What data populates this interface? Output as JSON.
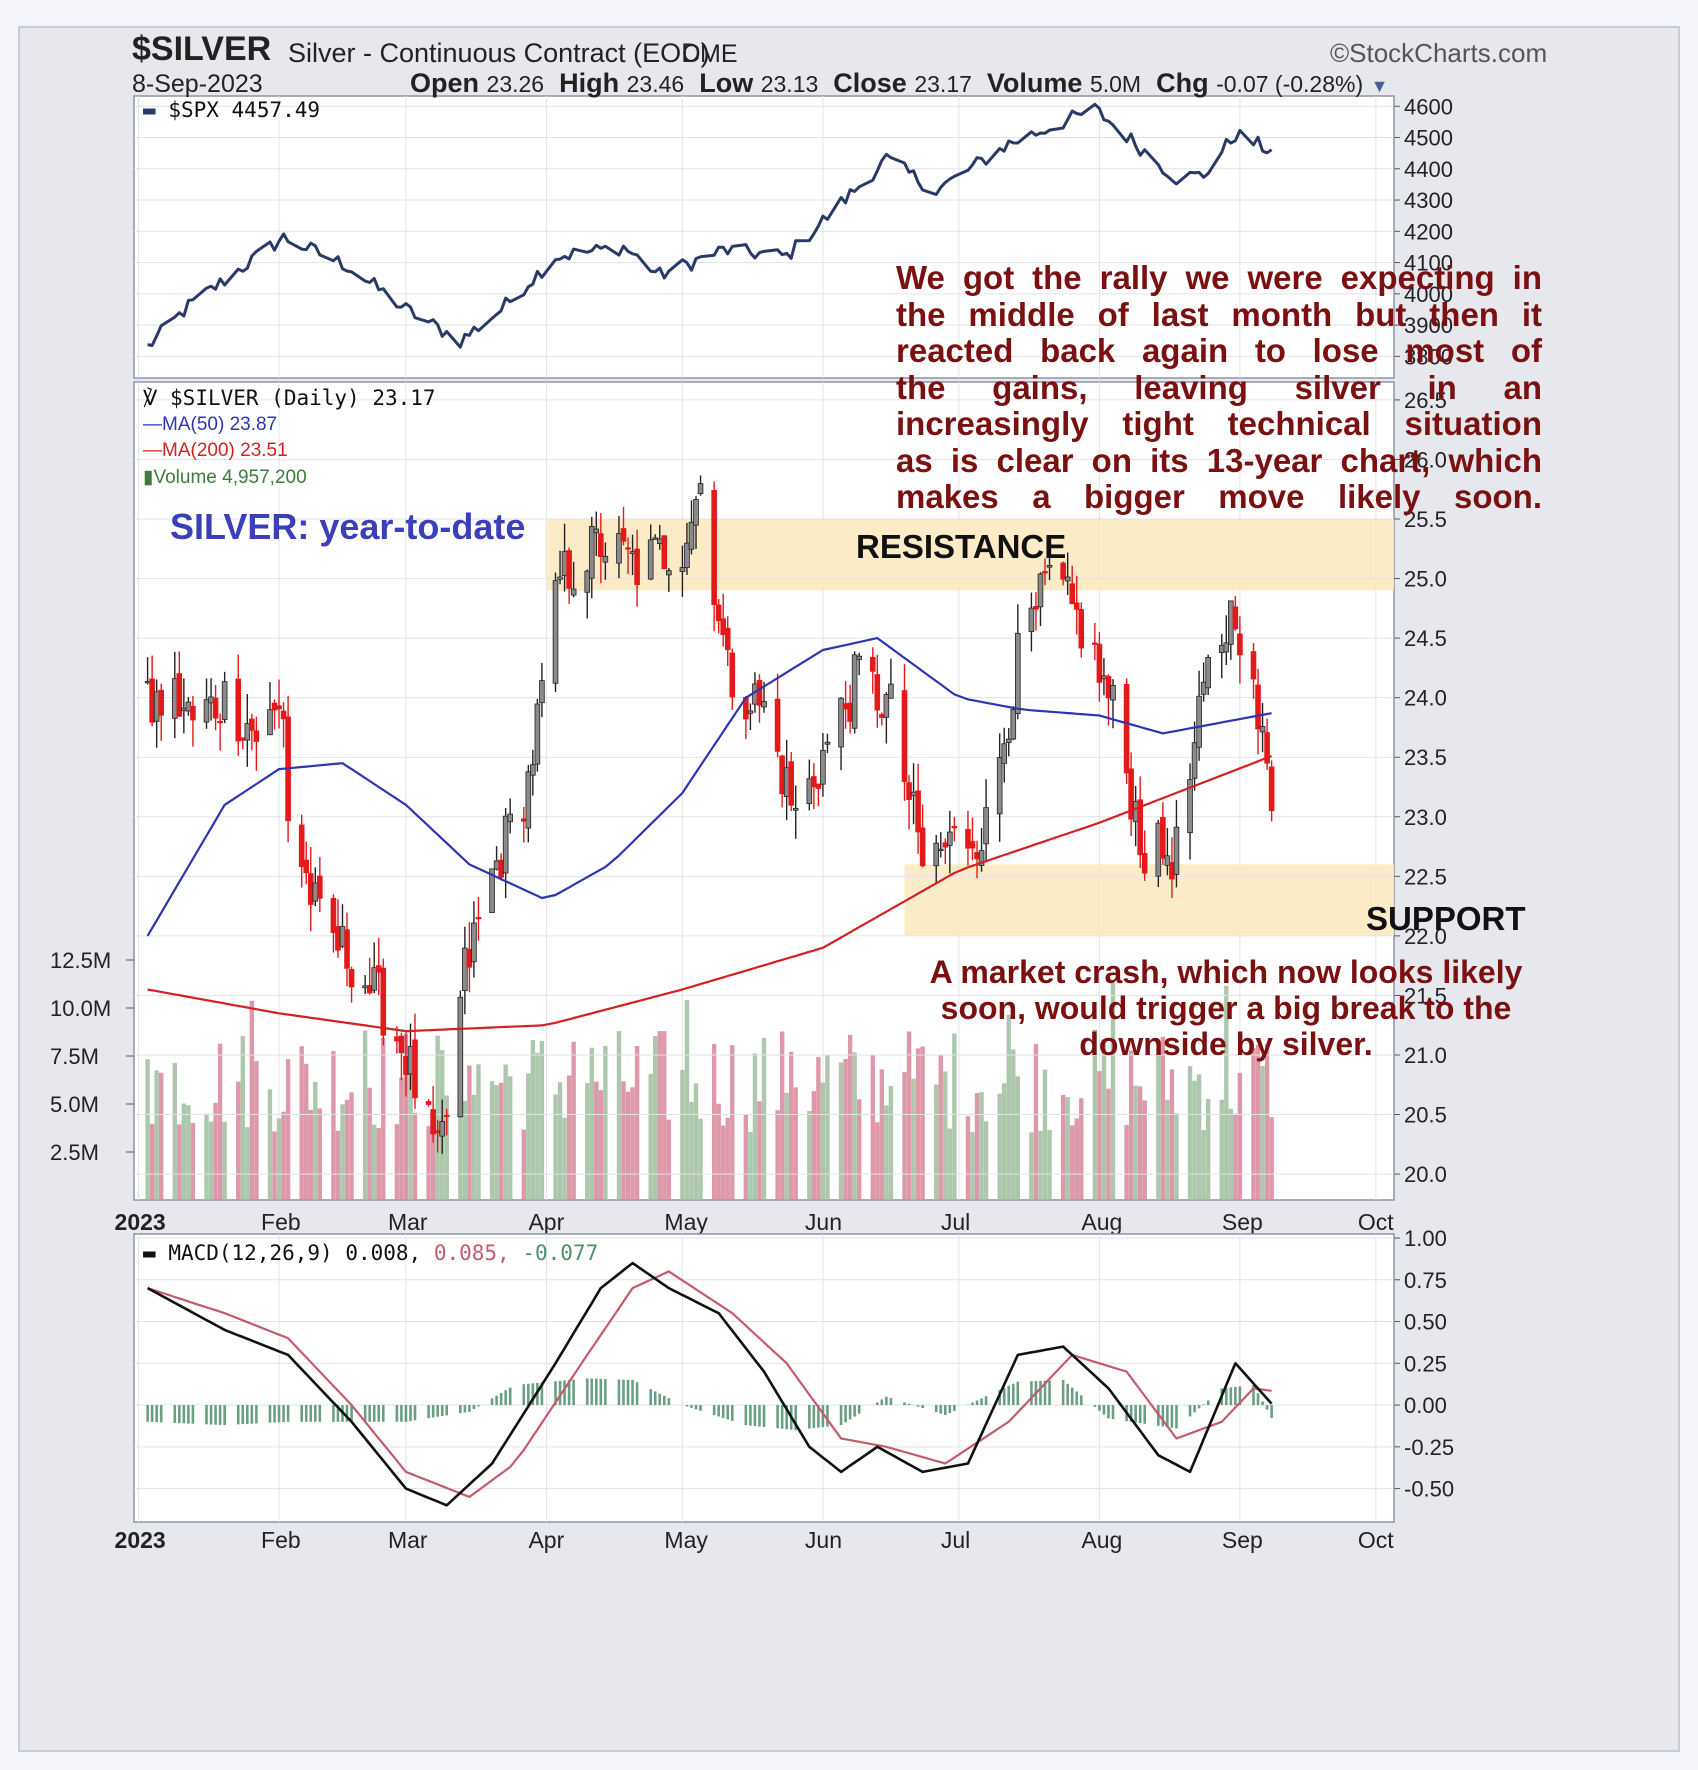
{
  "header": {
    "symbol": "$SILVER",
    "description": "Silver - Continuous Contract (EOD)",
    "exchange": "CME",
    "source": "©StockCharts.com",
    "date": "8-Sep-2023",
    "open_label": "Open",
    "open": "23.26",
    "high_label": "High",
    "high": "23.46",
    "low_label": "Low",
    "low": "23.13",
    "close_label": "Close",
    "close": "23.17",
    "volume_label": "Volume",
    "volume": "5.0M",
    "chg_label": "Chg",
    "chg": "-0.07 (-0.28%)"
  },
  "legends": {
    "spx": "$SPX 4457.49",
    "silver": "$SILVER (Daily) 23.17",
    "ma50": "MA(50) 23.87",
    "ma200": "MA(200) 23.51",
    "volume": "Volume 4,957,200",
    "macd_prefix": "MACD(12,26,9) 0.008,",
    "macd_signal": "0.085,",
    "macd_hist": "-0.077"
  },
  "annotations": {
    "title": "SILVER: year-to-date",
    "resistance": "RESISTANCE",
    "support": "SUPPORT",
    "note_top": [
      "We got the rally we were expecting in",
      "the middle of last month but then it",
      "reacted back again to lose most of",
      "the gains, leaving silver in an",
      "increasingly tight technical situation",
      "as is clear on its 13-year chart, which",
      "makes a bigger move likely soon."
    ],
    "note_bottom": [
      "A market crash, which now looks likely",
      "soon, would trigger a big break to the",
      "downside by silver."
    ]
  },
  "colors": {
    "up": "#8a8a8a",
    "down": "#e41a1a",
    "spx": "#2a3a66",
    "ma50": "#2c36b0",
    "ma200": "#d42020",
    "vol_up": "#9fbd9f",
    "vol_down": "#d7869a",
    "macd": "#111111",
    "signal": "#c45b6a",
    "hist": "#4f8f6f",
    "zone": "#fbe7bd",
    "note": "#7a1010"
  },
  "chart_data": [
    {
      "type": "line",
      "series": [
        {
          "name": "$SPX",
          "x": [
            "2023-01-03",
            "2023-01-12",
            "2023-02-02",
            "2023-02-16",
            "2023-03-01",
            "2023-03-13",
            "2023-03-22",
            "2023-04-03",
            "2023-04-18",
            "2023-04-26",
            "2023-05-10",
            "2023-05-24",
            "2023-06-05",
            "2023-06-15",
            "2023-06-26",
            "2023-07-12",
            "2023-07-31",
            "2023-08-09",
            "2023-08-18",
            "2023-08-24",
            "2023-08-31",
            "2023-09-08"
          ],
          "values": [
            3830,
            3960,
            4180,
            4090,
            3950,
            3850,
            3950,
            4120,
            4150,
            4060,
            4140,
            4120,
            4290,
            4430,
            4330,
            4480,
            4590,
            4480,
            4370,
            4380,
            4510,
            4457
          ]
        }
      ],
      "ylim": [
        3750,
        4620
      ],
      "yticks": [
        3800,
        3900,
        4000,
        4100,
        4200,
        4300,
        4400,
        4500,
        4600
      ]
    },
    {
      "type": "candlestick",
      "x_ticks": [
        "2023",
        "Feb",
        "Mar",
        "Apr",
        "May",
        "Jun",
        "Jul",
        "Aug",
        "Sep",
        "Oct"
      ],
      "yticks": [
        20.0,
        20.5,
        21.0,
        21.5,
        22.0,
        22.5,
        23.0,
        23.5,
        24.0,
        24.5,
        25.0,
        25.5,
        26.0,
        26.5
      ],
      "ylim": [
        19.9,
        26.6
      ],
      "price_path": [
        [
          "2023-01-03",
          23.9
        ],
        [
          "2023-01-09",
          24.0
        ],
        [
          "2023-01-13",
          23.8
        ],
        [
          "2023-01-20",
          24.0
        ],
        [
          "2023-01-27",
          23.7
        ],
        [
          "2023-02-02",
          23.9
        ],
        [
          "2023-02-03",
          23.0
        ],
        [
          "2023-02-10",
          22.1
        ],
        [
          "2023-02-17",
          21.8
        ],
        [
          "2023-02-24",
          21.4
        ],
        [
          "2023-03-01",
          21.0
        ],
        [
          "2023-03-08",
          20.1
        ],
        [
          "2023-03-10",
          20.5
        ],
        [
          "2023-03-14",
          21.7
        ],
        [
          "2023-03-20",
          22.5
        ],
        [
          "2023-03-28",
          23.3
        ],
        [
          "2023-04-04",
          25.0
        ],
        [
          "2023-04-13",
          25.3
        ],
        [
          "2023-04-21",
          25.1
        ],
        [
          "2023-05-01",
          25.3
        ],
        [
          "2023-05-05",
          25.8
        ],
        [
          "2023-05-11",
          24.2
        ],
        [
          "2023-05-19",
          23.9
        ],
        [
          "2023-05-26",
          23.0
        ],
        [
          "2023-06-02",
          23.6
        ],
        [
          "2023-06-09",
          24.2
        ],
        [
          "2023-06-16",
          23.9
        ],
        [
          "2023-06-23",
          22.6
        ],
        [
          "2023-06-30",
          22.8
        ],
        [
          "2023-07-07",
          22.9
        ],
        [
          "2023-07-14",
          24.3
        ],
        [
          "2023-07-21",
          25.0
        ],
        [
          "2023-07-28",
          24.6
        ],
        [
          "2023-08-04",
          23.9
        ],
        [
          "2023-08-11",
          22.7
        ],
        [
          "2023-08-18",
          22.7
        ],
        [
          "2023-08-25",
          24.2
        ],
        [
          "2023-08-31",
          24.8
        ],
        [
          "2023-09-08",
          23.17
        ]
      ],
      "ma50_path": [
        [
          "2023-01-03",
          22.0
        ],
        [
          "2023-01-20",
          23.1
        ],
        [
          "2023-02-01",
          23.4
        ],
        [
          "2023-02-15",
          23.45
        ],
        [
          "2023-03-01",
          23.1
        ],
        [
          "2023-03-15",
          22.6
        ],
        [
          "2023-04-01",
          22.3
        ],
        [
          "2023-04-15",
          22.6
        ],
        [
          "2023-05-01",
          23.2
        ],
        [
          "2023-05-15",
          24.0
        ],
        [
          "2023-06-01",
          24.4
        ],
        [
          "2023-06-13",
          24.5
        ],
        [
          "2023-07-01",
          24.0
        ],
        [
          "2023-07-15",
          23.9
        ],
        [
          "2023-08-01",
          23.85
        ],
        [
          "2023-08-15",
          23.7
        ],
        [
          "2023-09-08",
          23.87
        ]
      ],
      "ma200_path": [
        [
          "2023-01-03",
          21.55
        ],
        [
          "2023-02-01",
          21.35
        ],
        [
          "2023-03-01",
          21.2
        ],
        [
          "2023-04-01",
          21.25
        ],
        [
          "2023-05-01",
          21.55
        ],
        [
          "2023-06-01",
          21.9
        ],
        [
          "2023-07-01",
          22.55
        ],
        [
          "2023-08-01",
          22.95
        ],
        [
          "2023-09-08",
          23.51
        ]
      ],
      "resistance_band": [
        24.9,
        25.5
      ],
      "support_band": [
        22.0,
        22.6
      ]
    },
    {
      "type": "bar",
      "name": "Volume",
      "yticks": [
        "2.5M",
        "5.0M",
        "7.5M",
        "10.0M",
        "12.5M"
      ],
      "ylim": [
        0,
        12.5
      ]
    },
    {
      "type": "line",
      "name": "MACD(12,26,9)",
      "x_ticks": [
        "2023",
        "Feb",
        "Mar",
        "Apr",
        "May",
        "Jun",
        "Jul",
        "Aug",
        "Sep",
        "Oct"
      ],
      "yticks": [
        -0.5,
        -0.25,
        0.0,
        0.25,
        0.5,
        0.75,
        1.0
      ],
      "ylim": [
        -0.7,
        1.0
      ],
      "macd_path": [
        [
          "2023-01-03",
          0.7
        ],
        [
          "2023-01-20",
          0.45
        ],
        [
          "2023-02-03",
          0.3
        ],
        [
          "2023-02-17",
          -0.1
        ],
        [
          "2023-03-01",
          -0.5
        ],
        [
          "2023-03-10",
          -0.6
        ],
        [
          "2023-03-20",
          -0.35
        ],
        [
          "2023-04-03",
          0.25
        ],
        [
          "2023-04-13",
          0.7
        ],
        [
          "2023-04-20",
          0.85
        ],
        [
          "2023-04-28",
          0.7
        ],
        [
          "2023-05-09",
          0.55
        ],
        [
          "2023-05-19",
          0.2
        ],
        [
          "2023-05-29",
          -0.25
        ],
        [
          "2023-06-05",
          -0.4
        ],
        [
          "2023-06-13",
          -0.25
        ],
        [
          "2023-06-23",
          -0.4
        ],
        [
          "2023-07-03",
          -0.35
        ],
        [
          "2023-07-14",
          0.3
        ],
        [
          "2023-07-24",
          0.35
        ],
        [
          "2023-08-03",
          0.1
        ],
        [
          "2023-08-14",
          -0.3
        ],
        [
          "2023-08-21",
          -0.4
        ],
        [
          "2023-08-31",
          0.25
        ],
        [
          "2023-09-08",
          0.008
        ]
      ],
      "signal_path": [
        [
          "2023-01-03",
          0.7
        ],
        [
          "2023-01-20",
          0.55
        ],
        [
          "2023-02-03",
          0.4
        ],
        [
          "2023-02-17",
          0.0
        ],
        [
          "2023-03-01",
          -0.4
        ],
        [
          "2023-03-15",
          -0.55
        ],
        [
          "2023-03-25",
          -0.35
        ],
        [
          "2023-04-10",
          0.3
        ],
        [
          "2023-04-20",
          0.7
        ],
        [
          "2023-04-28",
          0.8
        ],
        [
          "2023-05-12",
          0.55
        ],
        [
          "2023-05-24",
          0.25
        ],
        [
          "2023-06-05",
          -0.2
        ],
        [
          "2023-06-15",
          -0.25
        ],
        [
          "2023-06-28",
          -0.35
        ],
        [
          "2023-07-12",
          -0.1
        ],
        [
          "2023-07-26",
          0.3
        ],
        [
          "2023-08-07",
          0.2
        ],
        [
          "2023-08-18",
          -0.2
        ],
        [
          "2023-08-28",
          -0.1
        ],
        [
          "2023-09-04",
          0.1
        ],
        [
          "2023-09-08",
          0.085
        ]
      ],
      "histogram": [
        [
          "2023-01-03",
          -0.1
        ],
        [
          "2023-01-20",
          -0.12
        ],
        [
          "2023-02-03",
          -0.1
        ],
        [
          "2023-02-17",
          -0.1
        ],
        [
          "2023-03-01",
          -0.1
        ],
        [
          "2023-03-15",
          -0.04
        ],
        [
          "2023-03-25",
          0.12
        ],
        [
          "2023-04-10",
          0.16
        ],
        [
          "2023-04-20",
          0.15
        ],
        [
          "2023-05-01",
          0.0
        ],
        [
          "2023-05-15",
          -0.12
        ],
        [
          "2023-05-26",
          -0.15
        ],
        [
          "2023-06-05",
          -0.12
        ],
        [
          "2023-06-15",
          0.05
        ],
        [
          "2023-06-28",
          -0.06
        ],
        [
          "2023-07-14",
          0.14
        ],
        [
          "2023-07-24",
          0.15
        ],
        [
          "2023-08-03",
          -0.08
        ],
        [
          "2023-08-18",
          -0.14
        ],
        [
          "2023-08-28",
          0.1
        ],
        [
          "2023-09-04",
          0.12
        ],
        [
          "2023-09-08",
          -0.077
        ]
      ]
    }
  ]
}
